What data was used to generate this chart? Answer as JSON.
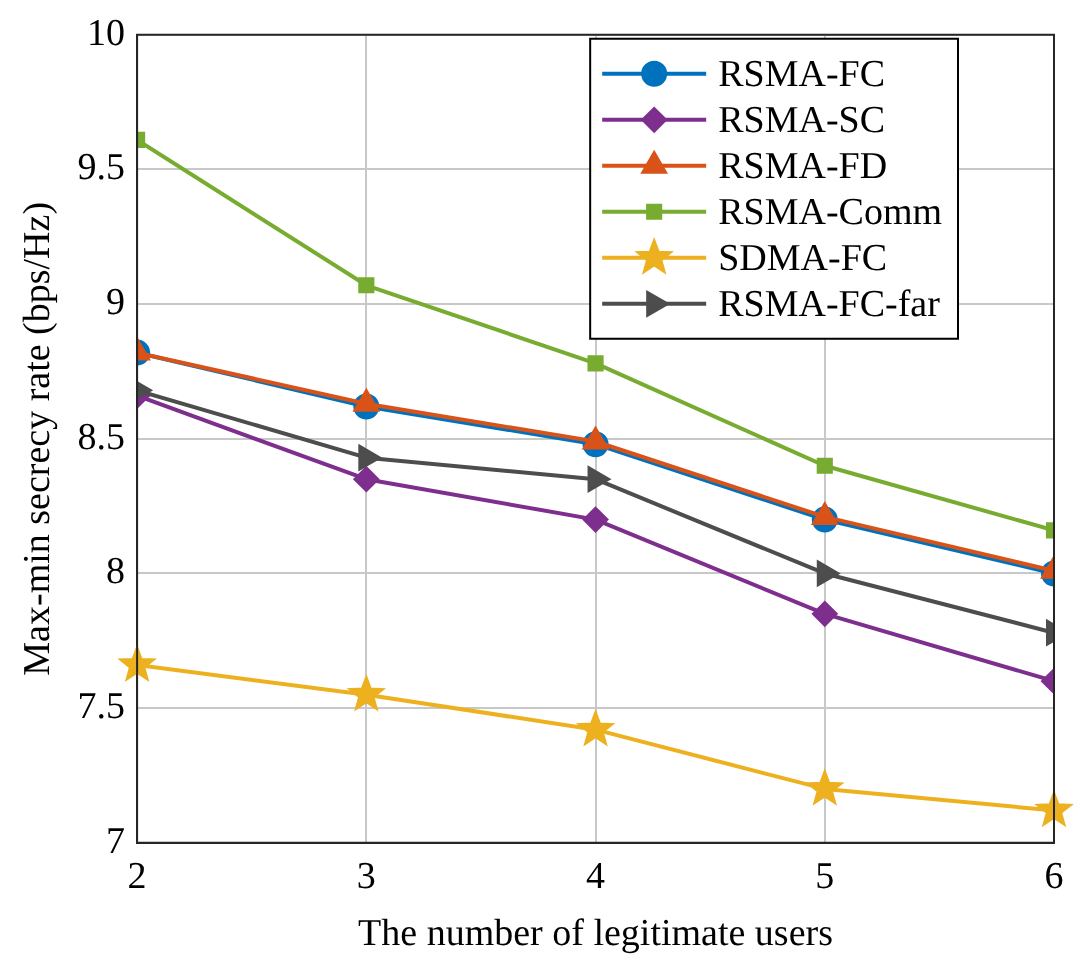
{
  "chart_data": {
    "type": "line",
    "xlabel": "The number of legitimate users",
    "ylabel": "Max-min secrecy rate (bps/Hz)",
    "x": [
      2,
      3,
      4,
      5,
      6
    ],
    "xlim": [
      2,
      6
    ],
    "xticks": [
      2,
      3,
      4,
      5,
      6
    ],
    "ylim": [
      7,
      10
    ],
    "yticks": [
      7,
      7.5,
      8,
      8.5,
      9,
      9.5,
      10
    ],
    "grid": true,
    "legend": "top right",
    "line_style": "solid",
    "series": [
      {
        "name": "RSMA-FC",
        "color": "#0072bd",
        "marker": "circle",
        "values": [
          8.82,
          8.62,
          8.48,
          8.2,
          8.0
        ]
      },
      {
        "name": "RSMA-SC",
        "color": "#7e2f8e",
        "marker": "diamond",
        "values": [
          8.66,
          8.35,
          8.2,
          7.85,
          7.6
        ]
      },
      {
        "name": "RSMA-FD",
        "color": "#d95319",
        "marker": "triangle",
        "values": [
          8.82,
          8.63,
          8.49,
          8.21,
          8.01
        ]
      },
      {
        "name": "RSMA-Comm",
        "color": "#77ac30",
        "marker": "square",
        "values": [
          9.61,
          9.07,
          8.78,
          8.4,
          8.16
        ]
      },
      {
        "name": "SDMA-FC",
        "color": "#edb120",
        "marker": "star",
        "values": [
          7.66,
          7.55,
          7.42,
          7.2,
          7.12
        ]
      },
      {
        "name": "RSMA-FC-far",
        "color": "#4d4d4d",
        "marker": "triangle-right",
        "values": [
          8.68,
          8.43,
          8.35,
          8.0,
          7.78
        ]
      }
    ]
  }
}
